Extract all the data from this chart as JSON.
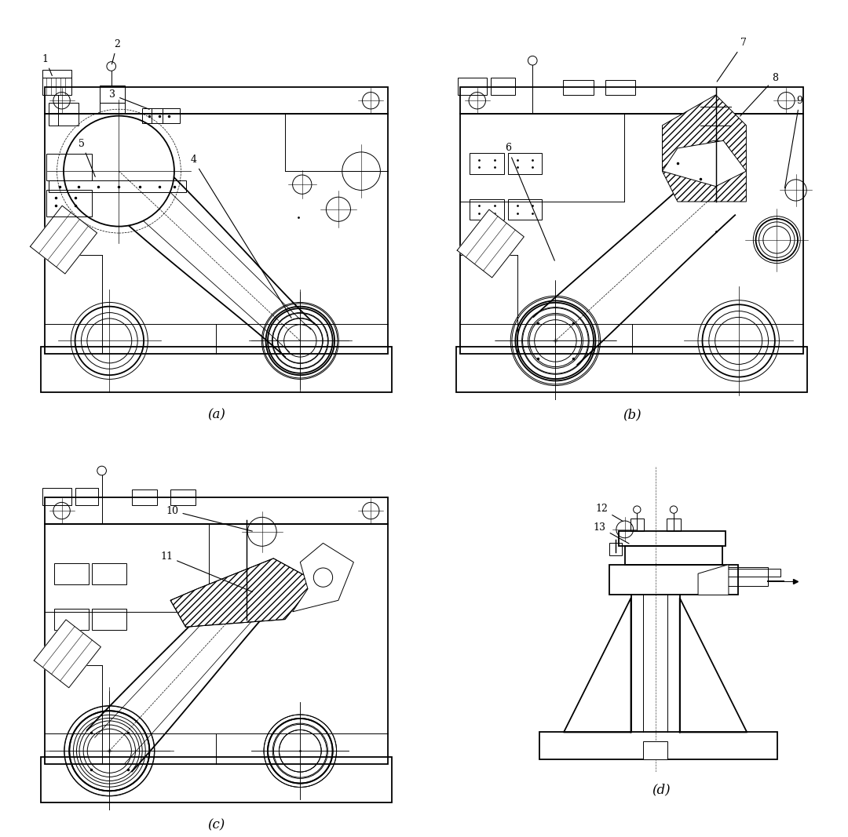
{
  "background_color": "#ffffff",
  "line_color": "#000000",
  "lw_main": 1.3,
  "lw_thin": 0.7,
  "lw_med": 1.0,
  "subfig_labels": [
    "(a)",
    "(b)",
    "(c)",
    "(d)"
  ],
  "axes_positions": {
    "a": [
      0.03,
      0.52,
      0.45,
      0.46
    ],
    "b": [
      0.52,
      0.52,
      0.45,
      0.46
    ],
    "c": [
      0.03,
      0.03,
      0.45,
      0.46
    ],
    "d": [
      0.6,
      0.05,
      0.36,
      0.42
    ]
  },
  "label_fontsize": 12
}
